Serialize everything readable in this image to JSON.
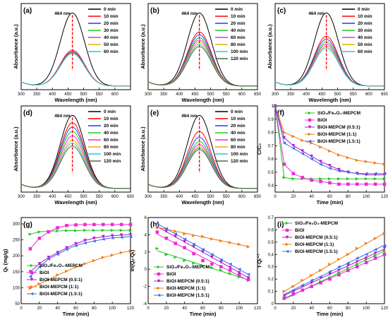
{
  "chart_data": [
    {
      "panel": "(a)",
      "type": "line",
      "xlabel": "Wavelength (nm)",
      "ylabel": "Absorbance (a.u.)",
      "xlim": [
        300,
        650
      ],
      "xticks": [
        300,
        350,
        400,
        450,
        500,
        550,
        600
      ],
      "peak_label": "464 nm",
      "series": [
        {
          "name": "0 min",
          "color": "#000000",
          "peak": 1.0
        },
        {
          "name": "10 min",
          "color": "#ff0000",
          "peak": 0.49
        },
        {
          "name": "20 min",
          "color": "#1f3cff",
          "peak": 0.47
        },
        {
          "name": "30 min",
          "color": "#1ec81e",
          "peak": 0.46
        },
        {
          "name": "40 min",
          "color": "#ee2ad6",
          "peak": 0.455
        },
        {
          "name": "50 min",
          "color": "#e0b000",
          "peak": 0.45
        },
        {
          "name": "60 min",
          "color": "#2ac9dd",
          "peak": 0.445
        }
      ]
    },
    {
      "panel": "(b)",
      "type": "line",
      "xlabel": "Wavelength (nm)",
      "ylabel": "Absorbance (a.u.)",
      "xlim": [
        300,
        650
      ],
      "xticks": [
        300,
        350,
        400,
        450,
        500,
        550,
        600,
        650
      ],
      "peak_label": "464 nm",
      "series": [
        {
          "name": "0 min",
          "color": "#000000",
          "peak": 1.0
        },
        {
          "name": "10 min",
          "color": "#ff0000",
          "peak": 0.74
        },
        {
          "name": "20 min",
          "color": "#1f3cff",
          "peak": 0.7
        },
        {
          "name": "40 min",
          "color": "#1ec81e",
          "peak": 0.66
        },
        {
          "name": "60 min",
          "color": "#ee2ad6",
          "peak": 0.63
        },
        {
          "name": "80 min",
          "color": "#e0b000",
          "peak": 0.6
        },
        {
          "name": "100 min",
          "color": "#2ac9dd",
          "peak": 0.57
        },
        {
          "name": "120 min",
          "color": "#556b2f",
          "peak": 0.54
        }
      ]
    },
    {
      "panel": "(c)",
      "type": "line",
      "xlabel": "Wavelength (nm)",
      "ylabel": "Absorbance (a.u.)",
      "xlim": [
        300,
        650
      ],
      "xticks": [
        300,
        350,
        400,
        450,
        500,
        550,
        600,
        650
      ],
      "peak_label": "464 nm",
      "series": [
        {
          "name": "0 min",
          "color": "#000000",
          "peak": 1.0
        },
        {
          "name": "10 min",
          "color": "#ff0000",
          "peak": 0.68
        },
        {
          "name": "20 min",
          "color": "#1f3cff",
          "peak": 0.64
        },
        {
          "name": "30 min",
          "color": "#1ec81e",
          "peak": 0.6
        },
        {
          "name": "40 min",
          "color": "#ee2ad6",
          "peak": 0.57
        },
        {
          "name": "50 min",
          "color": "#e0b000",
          "peak": 0.54
        },
        {
          "name": "60 min",
          "color": "#2ac9dd",
          "peak": 0.52
        }
      ]
    },
    {
      "panel": "(d)",
      "type": "line",
      "xlabel": "Wavelength (nm)",
      "ylabel": "Absorbance (a.u.)",
      "xlim": [
        300,
        650
      ],
      "xticks": [
        300,
        350,
        400,
        450,
        500,
        550,
        600,
        650
      ],
      "peak_label": "464 nm",
      "series": [
        {
          "name": "0 min",
          "color": "#000000",
          "peak": 1.0
        },
        {
          "name": "10 min",
          "color": "#ff0000",
          "peak": 0.9
        },
        {
          "name": "20 min",
          "color": "#1f3cff",
          "peak": 0.84
        },
        {
          "name": "40 min",
          "color": "#1ec81e",
          "peak": 0.78
        },
        {
          "name": "60 min",
          "color": "#ee2ad6",
          "peak": 0.72
        },
        {
          "name": "80 min",
          "color": "#e0b000",
          "peak": 0.66
        },
        {
          "name": "100 min",
          "color": "#2ac9dd",
          "peak": 0.62
        },
        {
          "name": "120 min",
          "color": "#556b2f",
          "peak": 0.58
        }
      ]
    },
    {
      "panel": "(e)",
      "type": "line",
      "xlabel": "Wavelength (nm)",
      "ylabel": "Absorbance (a.u.)",
      "xlim": [
        300,
        650
      ],
      "xticks": [
        300,
        350,
        400,
        450,
        500,
        550,
        600,
        650
      ],
      "peak_label": "464 nm",
      "series": [
        {
          "name": "0 min",
          "color": "#000000",
          "peak": 1.0
        },
        {
          "name": "10 min",
          "color": "#ff0000",
          "peak": 0.78
        },
        {
          "name": "20 min",
          "color": "#1f3cff",
          "peak": 0.7
        },
        {
          "name": "40 min",
          "color": "#1ec81e",
          "peak": 0.64
        },
        {
          "name": "60 min",
          "color": "#ee2ad6",
          "peak": 0.6
        },
        {
          "name": "80 min",
          "color": "#e0b000",
          "peak": 0.57
        },
        {
          "name": "100 min",
          "color": "#2ac9dd",
          "peak": 0.55
        },
        {
          "name": "120 min",
          "color": "#556b2f",
          "peak": 0.53
        }
      ]
    },
    {
      "panel": "(f)",
      "type": "line",
      "xlabel": "Time (min)",
      "ylabel": "C/C₀",
      "xlim": [
        0,
        120
      ],
      "ylim": [
        0.35,
        1.0
      ],
      "xticks": [
        0,
        20,
        40,
        60,
        80,
        100,
        120
      ],
      "yticks": [
        0.4,
        0.5,
        0.6,
        0.7,
        0.8,
        0.9,
        1.0
      ],
      "series": [
        {
          "name": "SiO₂/Fe₃O₄-MEPCM",
          "color": "#1ec81e",
          "marker": "triangle-right",
          "x": [
            0,
            10,
            20,
            30,
            40,
            50,
            60,
            70,
            80,
            90,
            100,
            110,
            120
          ],
          "y": [
            1.0,
            0.46,
            0.45,
            0.45,
            0.45,
            0.45,
            0.45,
            0.45,
            0.45,
            0.45,
            0.45,
            0.45,
            0.45
          ]
        },
        {
          "name": "BiOI",
          "color": "#ee2ad6",
          "marker": "square",
          "x": [
            0,
            10,
            20,
            30,
            40,
            50,
            60,
            70,
            80,
            90,
            100,
            110,
            120
          ],
          "y": [
            1.0,
            0.56,
            0.49,
            0.46,
            0.44,
            0.43,
            0.42,
            0.41,
            0.41,
            0.41,
            0.41,
            0.41,
            0.41
          ]
        },
        {
          "name": "BiOI-MEPCM (0.5:1)",
          "color": "#b01ad0",
          "marker": "triangle-down",
          "x": [
            0,
            10,
            20,
            30,
            40,
            50,
            60,
            70,
            80,
            90,
            100,
            110,
            120
          ],
          "y": [
            1.0,
            0.76,
            0.7,
            0.66,
            0.62,
            0.58,
            0.55,
            0.52,
            0.5,
            0.49,
            0.48,
            0.48,
            0.48
          ]
        },
        {
          "name": "BiOI-MEPCM (1:1)",
          "color": "#f07a10",
          "marker": "triangle-right",
          "x": [
            0,
            10,
            20,
            30,
            40,
            50,
            60,
            70,
            80,
            90,
            100,
            110,
            120
          ],
          "y": [
            1.0,
            0.8,
            0.77,
            0.74,
            0.72,
            0.69,
            0.66,
            0.63,
            0.61,
            0.59,
            0.58,
            0.57,
            0.56
          ]
        },
        {
          "name": "BiOI-MEPCM (1.5:1)",
          "color": "#3a6ee8",
          "marker": "triangle-left",
          "x": [
            0,
            10,
            20,
            30,
            40,
            50,
            60,
            70,
            80,
            90,
            100,
            110,
            120
          ],
          "y": [
            1.0,
            0.72,
            0.68,
            0.64,
            0.6,
            0.56,
            0.53,
            0.51,
            0.5,
            0.49,
            0.49,
            0.49,
            0.49
          ]
        }
      ]
    },
    {
      "panel": "(g)",
      "type": "scatter",
      "xlabel": "Time (min)",
      "ylabel": "Qₜ (mg/g)",
      "xlim": [
        0,
        120
      ],
      "ylim": [
        50,
        320
      ],
      "xticks": [
        0,
        20,
        40,
        60,
        80,
        100,
        120
      ],
      "yticks": [
        50,
        100,
        150,
        200,
        250,
        300
      ],
      "series": [
        {
          "name": "SiO₂/Fe₃O₄-MEPCM",
          "color": "#1ec81e",
          "marker": "triangle-right",
          "x": [
            10,
            20,
            30,
            40,
            50,
            60,
            70,
            80,
            90,
            100,
            110,
            120
          ],
          "y": [
            268,
            275,
            277,
            278,
            279,
            279,
            280,
            280,
            280,
            280,
            280,
            280
          ]
        },
        {
          "name": "BiOI",
          "color": "#ee2ad6",
          "marker": "square",
          "x": [
            10,
            20,
            30,
            40,
            50,
            60,
            70,
            80,
            90,
            100,
            110,
            120
          ],
          "y": [
            222,
            255,
            275,
            288,
            295,
            297,
            298,
            298,
            298,
            298,
            298,
            298
          ]
        },
        {
          "name": "BiOI-MEPCM (0.5:1)",
          "color": "#b01ad0",
          "marker": "triangle-down",
          "x": [
            10,
            20,
            30,
            40,
            50,
            60,
            70,
            80,
            90,
            100,
            110,
            120
          ],
          "y": [
            150,
            175,
            195,
            210,
            225,
            238,
            248,
            255,
            260,
            263,
            265,
            266
          ]
        },
        {
          "name": "BiOI-MEPCM (1:1)",
          "color": "#f07a10",
          "marker": "triangle-right",
          "x": [
            10,
            20,
            30,
            40,
            50,
            60,
            70,
            80,
            90,
            100,
            110,
            120
          ],
          "y": [
            98,
            112,
            125,
            140,
            152,
            165,
            175,
            185,
            195,
            202,
            210,
            215
          ]
        },
        {
          "name": "BiOI-MEPCM (1.5:1)",
          "color": "#3a6ee8",
          "marker": "triangle-left",
          "x": [
            10,
            20,
            30,
            40,
            50,
            60,
            70,
            80,
            90,
            100,
            110,
            120
          ],
          "y": [
            135,
            165,
            190,
            205,
            220,
            232,
            240,
            246,
            252,
            256,
            258,
            260
          ]
        }
      ]
    },
    {
      "panel": "(h)",
      "type": "scatter",
      "xlabel": "Time (min)",
      "ylabel": "ln(Qₑ-Qₜ)",
      "xlim": [
        0,
        120
      ],
      "ylim": [
        -4,
        6
      ],
      "xticks": [
        0,
        20,
        40,
        60,
        80,
        100,
        120
      ],
      "yticks": [
        -4,
        -2,
        0,
        2,
        4,
        6
      ],
      "series": [
        {
          "name": "SiO₂/Fe₃O₄-MEPCM",
          "color": "#1ec81e",
          "marker": "triangle-right",
          "x": [
            10,
            20,
            30,
            40,
            50,
            60,
            70,
            80,
            90,
            100,
            110
          ],
          "y": [
            2.4,
            1.7,
            1.4,
            1.0,
            0.7,
            0.4,
            0.2,
            -0.1,
            -0.5,
            -0.9,
            -1.3
          ]
        },
        {
          "name": "BiOI",
          "color": "#ee2ad6",
          "marker": "square",
          "x": [
            10,
            20,
            30,
            40,
            50,
            60,
            70,
            80,
            90,
            100,
            110
          ],
          "y": [
            4.3,
            3.6,
            3.0,
            2.5,
            1.8,
            1.0,
            0.6,
            0.3,
            -0.1,
            -0.6,
            -1.2
          ]
        },
        {
          "name": "BiOI-MEPCM (0.5:1)",
          "color": "#b01ad0",
          "marker": "triangle-down",
          "x": [
            10,
            20,
            30,
            40,
            50,
            60,
            70,
            80,
            90,
            100,
            110
          ],
          "y": [
            4.8,
            4.4,
            3.8,
            3.2,
            2.6,
            2.0,
            1.4,
            0.8,
            0.2,
            -0.4,
            -1.0
          ]
        },
        {
          "name": "BiOI-MEPCM (1:1)",
          "color": "#f07a10",
          "marker": "triangle-right",
          "x": [
            10,
            20,
            30,
            40,
            50,
            60,
            70,
            80,
            90,
            100,
            110
          ],
          "y": [
            4.9,
            4.7,
            4.4,
            4.1,
            3.9,
            3.8,
            3.5,
            3.3,
            3.1,
            2.9,
            2.6
          ]
        },
        {
          "name": "BiOI-MEPCM (1.5:1)",
          "color": "#3a6ee8",
          "marker": "triangle-left",
          "x": [
            10,
            20,
            30,
            40,
            50,
            60,
            70,
            80,
            90,
            100,
            110
          ],
          "y": [
            5.3,
            4.7,
            4.1,
            3.5,
            2.9,
            2.3,
            1.7,
            1.1,
            0.6,
            0.0,
            -0.6
          ]
        }
      ]
    },
    {
      "panel": "(i)",
      "type": "scatter",
      "xlabel": "Time (min)",
      "ylabel": "t·Qₜ⁻¹",
      "xlim": [
        0,
        120
      ],
      "ylim": [
        0.0,
        0.7
      ],
      "xticks": [
        0,
        20,
        40,
        60,
        80,
        100,
        120
      ],
      "yticks": [
        0.0,
        0.1,
        0.2,
        0.3,
        0.4,
        0.5,
        0.6,
        0.7
      ],
      "series": [
        {
          "name": "SiO₂/Fe₃O₄-MEPCM",
          "color": "#1ec81e",
          "marker": "triangle-right",
          "x": [
            10,
            20,
            30,
            40,
            50,
            60,
            70,
            80,
            90,
            100,
            110,
            120
          ],
          "y": [
            0.04,
            0.07,
            0.11,
            0.14,
            0.18,
            0.21,
            0.25,
            0.29,
            0.32,
            0.36,
            0.39,
            0.43
          ]
        },
        {
          "name": "BiOI",
          "color": "#ee2ad6",
          "marker": "square",
          "x": [
            10,
            20,
            30,
            40,
            50,
            60,
            70,
            80,
            90,
            100,
            110,
            120
          ],
          "y": [
            0.045,
            0.08,
            0.11,
            0.14,
            0.17,
            0.2,
            0.235,
            0.27,
            0.3,
            0.335,
            0.37,
            0.4
          ]
        },
        {
          "name": "BiOI-MEPCM (0.5:1)",
          "color": "#b01ad0",
          "marker": "triangle-down",
          "x": [
            10,
            20,
            30,
            40,
            50,
            60,
            70,
            80,
            90,
            100,
            110,
            120
          ],
          "y": [
            0.065,
            0.1,
            0.14,
            0.17,
            0.21,
            0.24,
            0.27,
            0.31,
            0.34,
            0.37,
            0.41,
            0.45
          ]
        },
        {
          "name": "BiOI-MEPCM (1:1)",
          "color": "#f07a10",
          "marker": "triangle-right",
          "x": [
            10,
            20,
            30,
            40,
            50,
            60,
            70,
            80,
            90,
            100,
            110,
            120
          ],
          "y": [
            0.1,
            0.14,
            0.19,
            0.23,
            0.27,
            0.32,
            0.36,
            0.4,
            0.45,
            0.49,
            0.53,
            0.57
          ]
        },
        {
          "name": "BiOI-MEPCM (1.5:1)",
          "color": "#3a6ee8",
          "marker": "triangle-left",
          "x": [
            10,
            20,
            30,
            40,
            50,
            60,
            70,
            80,
            90,
            100,
            110,
            120
          ],
          "y": [
            0.07,
            0.11,
            0.15,
            0.19,
            0.22,
            0.26,
            0.3,
            0.33,
            0.37,
            0.4,
            0.44,
            0.47
          ]
        }
      ]
    }
  ]
}
